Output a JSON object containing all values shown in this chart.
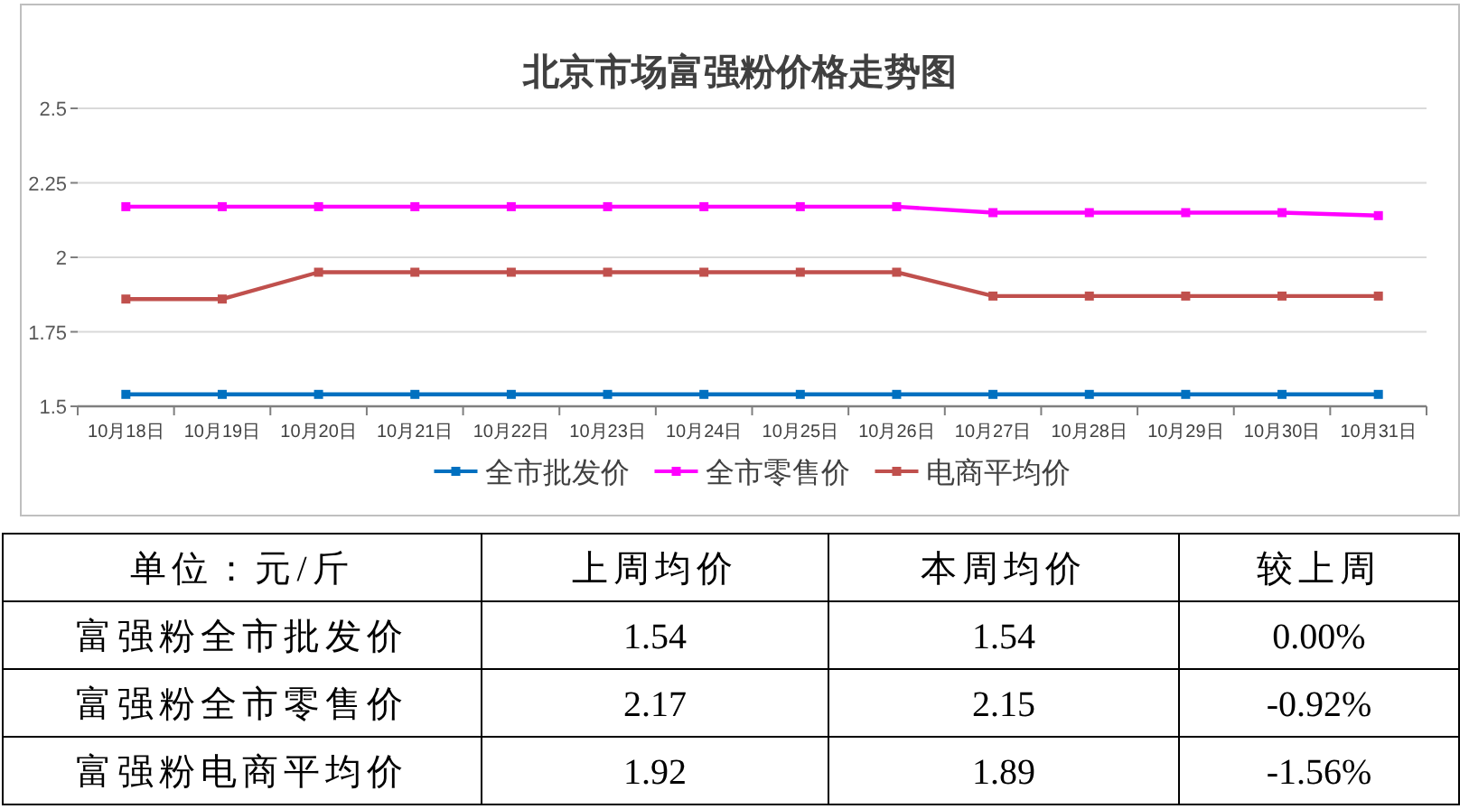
{
  "chart_data": [
    {
      "type": "line",
      "title": "北京市场富强粉价格走势图",
      "categories": [
        "10月18日",
        "10月19日",
        "10月20日",
        "10月21日",
        "10月22日",
        "10月23日",
        "10月24日",
        "10月25日",
        "10月26日",
        "10月27日",
        "10月28日",
        "10月29日",
        "10月30日",
        "10月31日"
      ],
      "series": [
        {
          "name": "全市批发价",
          "color": "#0070c0",
          "values": [
            1.54,
            1.54,
            1.54,
            1.54,
            1.54,
            1.54,
            1.54,
            1.54,
            1.54,
            1.54,
            1.54,
            1.54,
            1.54,
            1.54
          ]
        },
        {
          "name": "全市零售价",
          "color": "#ff00ff",
          "values": [
            2.17,
            2.17,
            2.17,
            2.17,
            2.17,
            2.17,
            2.17,
            2.17,
            2.17,
            2.15,
            2.15,
            2.15,
            2.15,
            2.14
          ]
        },
        {
          "name": "电商平均价",
          "color": "#c0504d",
          "values": [
            1.86,
            1.86,
            1.95,
            1.95,
            1.95,
            1.95,
            1.95,
            1.95,
            1.95,
            1.87,
            1.87,
            1.87,
            1.87,
            1.87
          ]
        }
      ],
      "ylim": [
        1.5,
        2.5
      ],
      "yticks": [
        1.5,
        1.75,
        2,
        2.25,
        2.5
      ],
      "grid": "y",
      "legend": "bottom",
      "marker": "square"
    },
    {
      "type": "other",
      "annotations": [
        "单位：元/斤"
      ],
      "categories": [
        "上周均价",
        "本周均价",
        "较上周"
      ],
      "y_categories": [
        "富强粉全市批发价",
        "富强粉全市零售价",
        "富强粉电商平均价"
      ],
      "cell_labels": [
        [
          "1.54",
          "1.54",
          "0.00%"
        ],
        [
          "2.17",
          "2.15",
          "-0.92%"
        ],
        [
          "1.92",
          "1.89",
          "-1.56%"
        ]
      ]
    }
  ]
}
